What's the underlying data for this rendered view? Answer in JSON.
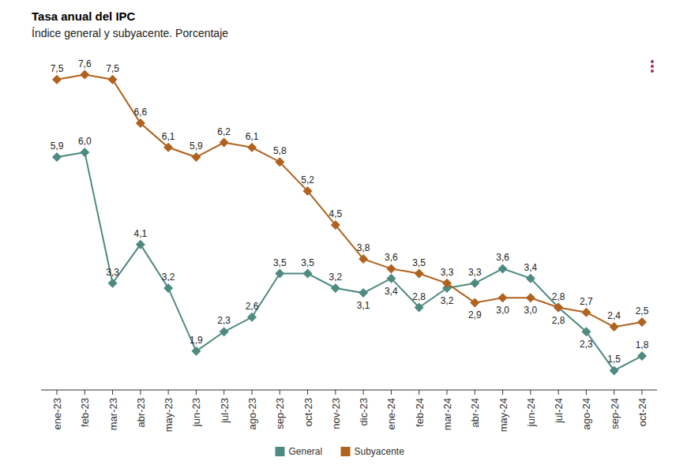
{
  "chart_data": {
    "type": "line",
    "title": "Tasa anual del IPC",
    "subtitle": "Índice general y subyacente. Porcentaje",
    "categories": [
      "ene-23",
      "feb-23",
      "mar-23",
      "abr-23",
      "may-23",
      "jun-23",
      "jul-23",
      "ago-23",
      "sep-23",
      "oct-23",
      "nov-23",
      "dic-23",
      "ene-24",
      "feb-24",
      "mar-24",
      "abr-24",
      "may-24",
      "jun-24",
      "jul-24",
      "ago-24",
      "sep-24",
      "oct-24"
    ],
    "series": [
      {
        "name": "General",
        "color": "#4e8a80",
        "marker": "diamond",
        "line_style": "solid",
        "values": [
          5.9,
          6.0,
          3.3,
          4.1,
          3.2,
          1.9,
          2.3,
          2.6,
          3.5,
          3.5,
          3.2,
          3.1,
          3.4,
          2.8,
          3.2,
          3.3,
          3.6,
          3.4,
          2.8,
          2.3,
          1.5,
          1.8
        ],
        "value_labels": [
          "5,9",
          "6,0",
          "3,3",
          "4,1",
          "3,2",
          "1,9",
          "2,3",
          "2,6",
          "3,5",
          "3,5",
          "3,2",
          "3,1",
          "3,4",
          "2,8",
          "3,2",
          "3,3",
          "3,6",
          "3,4",
          "2,8",
          "2,3",
          "1,5",
          "1,8"
        ]
      },
      {
        "name": "Subyacente",
        "color": "#b0621e",
        "marker": "diamond",
        "line_style": "solid",
        "values": [
          7.5,
          7.6,
          7.5,
          6.6,
          6.1,
          5.9,
          6.2,
          6.1,
          5.8,
          5.2,
          4.5,
          3.8,
          3.6,
          3.5,
          3.3,
          2.9,
          3.0,
          3.0,
          2.8,
          2.7,
          2.4,
          2.5
        ],
        "value_labels": [
          "7,5",
          "7,6",
          "7,5",
          "6,6",
          "6,1",
          "5,9",
          "6,2",
          "6,1",
          "5,8",
          "5,2",
          "4,5",
          "3,8",
          "3,6",
          "3,5",
          "3,3",
          "2,9",
          "3,0",
          "3,0",
          "2,8",
          "2,7",
          "2,4",
          "2,5"
        ]
      }
    ],
    "ylim": [
      1.1,
      8.0
    ],
    "tick_labels": "x",
    "data_labels": true,
    "grid": false,
    "legend": "bottom"
  }
}
